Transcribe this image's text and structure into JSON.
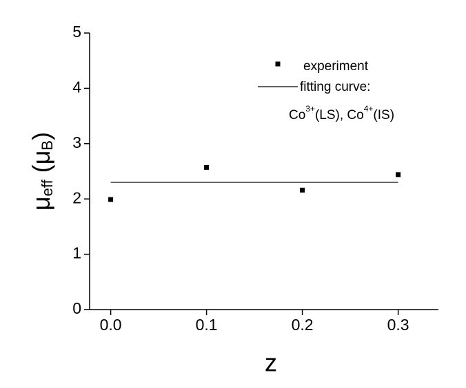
{
  "chart_data": {
    "type": "scatter",
    "x": [
      0,
      0.1,
      0.2,
      0.3
    ],
    "series": [
      {
        "name": "experiment",
        "color": "#000000",
        "values": [
          1.99,
          2.57,
          2.16,
          2.44
        ]
      },
      {
        "name": "fitting curve:",
        "color": "#000000",
        "values": [
          2.3,
          2.3,
          2.3,
          2.3
        ]
      }
    ],
    "annotation": [
      "Co",
      "3+",
      "(LS), Co",
      "4+",
      "(IS)"
    ],
    "xlabel": "z",
    "ylabel": [
      "μ",
      "eff",
      " (μ",
      "B",
      ")"
    ],
    "xlim": [
      -0.022,
      0.342
    ],
    "ylim": [
      0,
      5
    ],
    "xticks": [
      {
        "value": 0,
        "label": "0.0"
      },
      0.1,
      0.2,
      0.3
    ],
    "yticks": [
      0,
      1,
      2,
      3,
      4,
      5
    ]
  }
}
